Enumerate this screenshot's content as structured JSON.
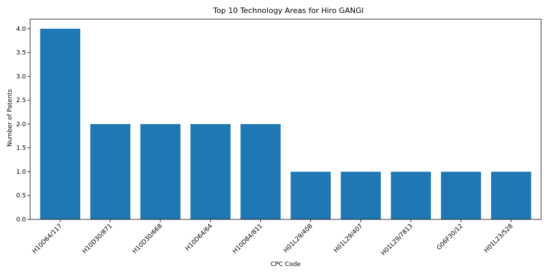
{
  "chart_data": {
    "type": "bar",
    "title": "Top 10 Technology Areas for Hiro GANGI",
    "xlabel": "CPC Code",
    "ylabel": "Number of Patents",
    "categories": [
      "H10D64/117",
      "H10D30/871",
      "H10D30/668",
      "H10D64/64",
      "H10D84/811",
      "H01L29/408",
      "H01L29/407",
      "H01L29/7813",
      "G06F30/12",
      "H01L23/528"
    ],
    "values": [
      4,
      2,
      2,
      2,
      2,
      1,
      1,
      1,
      1,
      1
    ],
    "ylim": [
      0,
      4.2
    ],
    "yticks": [
      "0.0",
      "0.5",
      "1.0",
      "1.5",
      "2.0",
      "2.5",
      "3.0",
      "3.5",
      "4.0"
    ],
    "grid": false,
    "legend": "none",
    "bar_color": "#1f77b4"
  }
}
